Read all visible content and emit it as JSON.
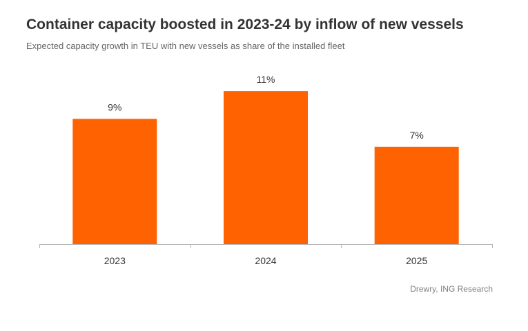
{
  "title": "Container capacity boosted in 2023-24 by inflow of new vessels",
  "subtitle": "Expected capacity growth in TEU with new vessels as share of the installed fleet",
  "source": "Drewry, ING Research",
  "colors": {
    "bar": "#FF6200",
    "axis": "#B3B3B3",
    "text": "#333333"
  },
  "chart_data": {
    "type": "bar",
    "categories": [
      "2023",
      "2024",
      "2025"
    ],
    "values": [
      9,
      11,
      7
    ],
    "value_labels": [
      "9%",
      "11%",
      "7%"
    ],
    "unit": "%",
    "ylim": [
      0,
      11.5
    ],
    "grid": false,
    "legend": "none"
  }
}
